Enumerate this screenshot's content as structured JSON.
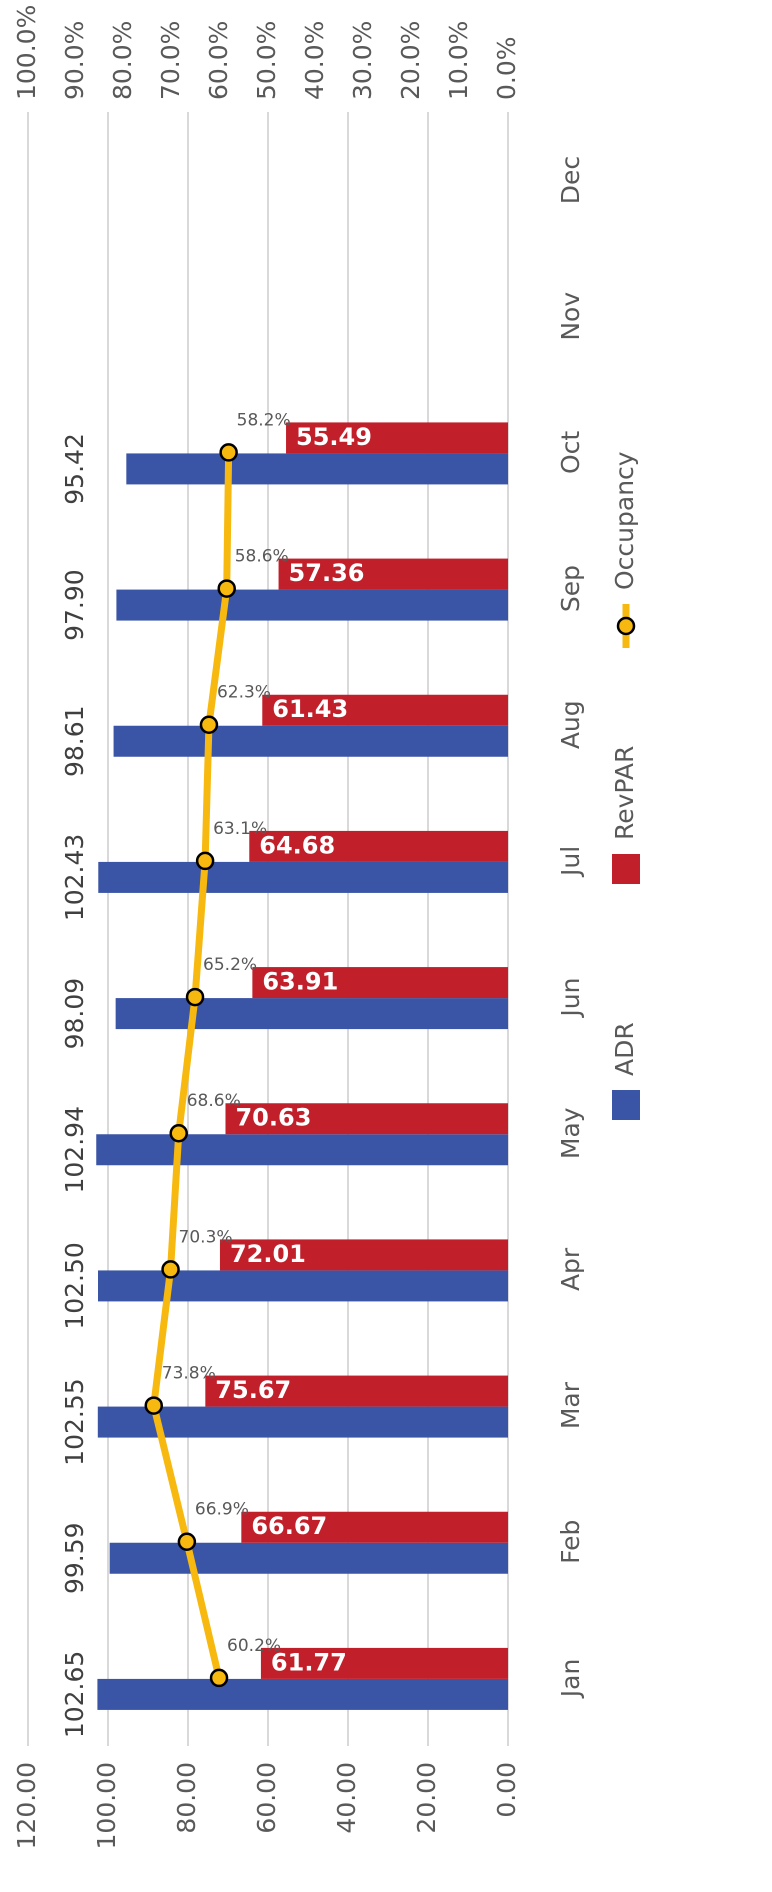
{
  "chart_data": {
    "type": "bar_line",
    "categories": [
      "Jan",
      "Feb",
      "Mar",
      "Apr",
      "May",
      "Jun",
      "Jul",
      "Aug",
      "Sep",
      "Oct",
      "Nov",
      "Dec"
    ],
    "series": [
      {
        "name": "ADR",
        "type": "bar",
        "color": "#3b55a6",
        "values": [
          102.65,
          99.59,
          102.55,
          102.5,
          102.94,
          98.09,
          102.43,
          98.61,
          97.9,
          95.42,
          null,
          null
        ],
        "value_labels": [
          "102.65",
          "99.59",
          "102.55",
          "102.50",
          "102.94",
          "98.09",
          "102.43",
          "98.61",
          "97.90",
          "95.42",
          null,
          null
        ]
      },
      {
        "name": "RevPAR",
        "type": "bar",
        "color": "#c1202b",
        "values": [
          61.77,
          66.67,
          75.67,
          72.01,
          70.63,
          63.91,
          64.68,
          61.43,
          57.36,
          55.49,
          null,
          null
        ]
      },
      {
        "name": "Occupancy",
        "type": "line",
        "axis": "y2",
        "color": "#f7b90f",
        "values": [
          60.2,
          66.9,
          73.8,
          70.3,
          68.6,
          65.2,
          63.1,
          62.3,
          58.6,
          58.2,
          null,
          null
        ],
        "value_labels": [
          "60.2%",
          "66.9%",
          "73.8%",
          "70.3%",
          "68.6%",
          "65.2%",
          "63.1%",
          "62.3%",
          "58.6%",
          "58.2%",
          null,
          null
        ]
      }
    ],
    "ylim": [
      0,
      120
    ],
    "yticks": [
      {
        "value": 0,
        "label": "0.00"
      },
      {
        "value": 20,
        "label": "20.00"
      },
      {
        "value": 40,
        "label": "40.00"
      },
      {
        "value": 60,
        "label": "60.00"
      },
      {
        "value": 80,
        "label": "80.00"
      },
      {
        "value": 100,
        "label": "100.00"
      },
      {
        "value": 120,
        "label": "120.00"
      }
    ],
    "y2lim": [
      0,
      100
    ],
    "y2ticks": [
      {
        "value": 0,
        "label": "0.0%"
      },
      {
        "value": 10,
        "label": "10.0%"
      },
      {
        "value": 20,
        "label": "20.0%"
      },
      {
        "value": 30,
        "label": "30.0%"
      },
      {
        "value": 40,
        "label": "40.0%"
      },
      {
        "value": 50,
        "label": "50.0%"
      },
      {
        "value": 60,
        "label": "60.0%"
      },
      {
        "value": 70,
        "label": "70.0%"
      },
      {
        "value": 80,
        "label": "80.0%"
      },
      {
        "value": 90,
        "label": "90.0%"
      },
      {
        "value": 100,
        "label": "100.0%"
      }
    ],
    "grid": true,
    "legend": "bottom",
    "rotation": -90
  }
}
